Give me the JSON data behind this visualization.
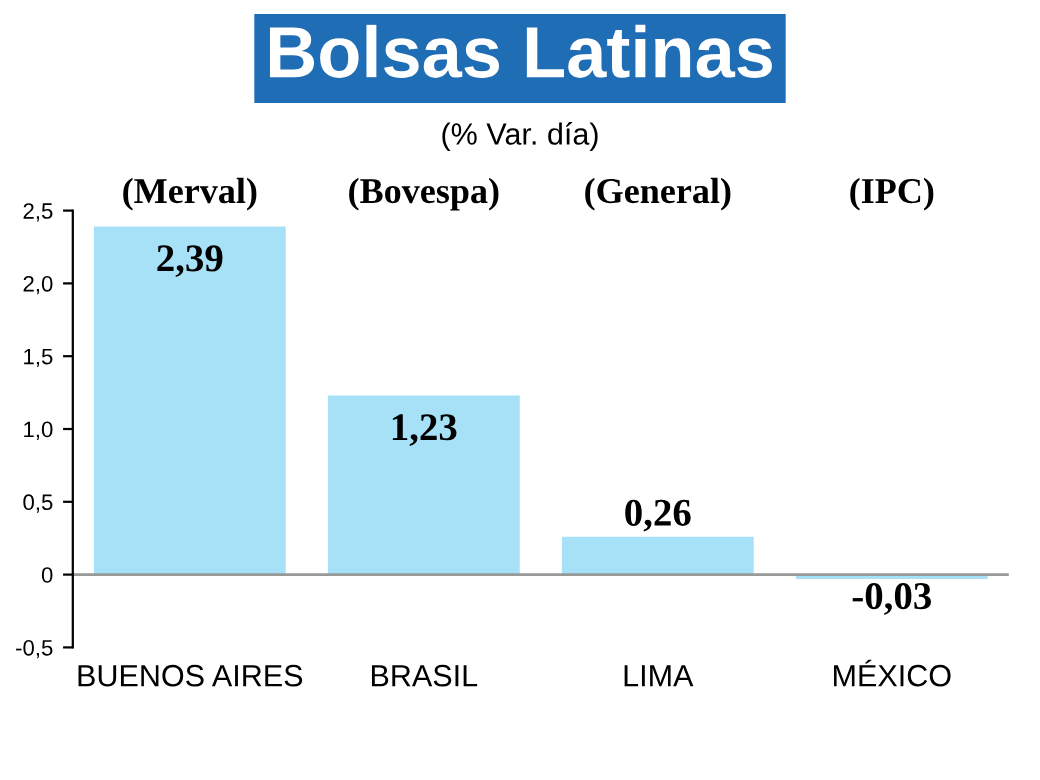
{
  "chart_data": {
    "type": "bar",
    "title": "Bolsas Latinas",
    "subtitle": "(% Var. día)",
    "annotations": [
      "(Merval)",
      "(Bovespa)",
      "(General)",
      "(IPC)"
    ],
    "categories": [
      "BUENOS AIRES",
      "BRASIL",
      "LIMA",
      "MÉXICO"
    ],
    "values": [
      2.39,
      1.23,
      0.26,
      -0.03
    ],
    "value_labels": [
      "2,39",
      "1,23",
      "0,26",
      "-0,03"
    ],
    "color": "#a6e1f8",
    "ylim": [
      -0.5,
      2.5
    ],
    "yticks": [
      {
        "value": -0.5,
        "label": "-0,5"
      },
      0,
      {
        "value": 0.5,
        "label": "0,5"
      },
      {
        "value": 1,
        "label": "1,0"
      },
      {
        "value": 1.5,
        "label": "1,5"
      },
      {
        "value": 2,
        "label": "2,0"
      },
      {
        "value": 2.5,
        "label": "2,5"
      }
    ],
    "ref_lines": [
      {
        "axis": "y",
        "value": 0,
        "color": "#999999"
      }
    ]
  }
}
